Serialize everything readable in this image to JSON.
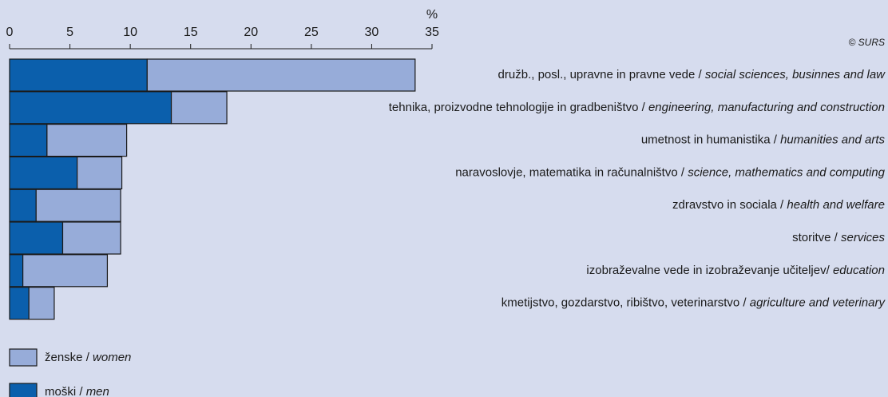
{
  "chart_data": {
    "type": "stacked-barh",
    "unit_label": "%",
    "source": "© SURS",
    "categories": [
      "družb., posl., upravne in pravne vede / social sciences, businnes and law",
      "tehnika, proizvodne tehnologije in gradbeništvo / engineering, manufacturing and construction",
      "umetnost in humanistika / humanities and arts",
      "naravoslovje, matematika in računalništvo / science, mathematics and computing",
      "zdravstvo in sociala / health and welfare",
      "storitve / services",
      "izobraževalne vede in izobraževanje učiteljev/ education",
      "kmetijstvo, gozdarstvo, ribištvo, veterinarstvo / agriculture and veterinary"
    ],
    "series": [
      {
        "name": "ženske / women",
        "color": "#97acd9",
        "values": [
          22.2,
          4.6,
          6.6,
          3.7,
          7.0,
          4.8,
          7.0,
          2.1
        ]
      },
      {
        "name": "moški / men",
        "color": "#0b5fac",
        "values": [
          11.4,
          13.4,
          3.1,
          5.6,
          2.2,
          4.4,
          1.1,
          1.6
        ]
      }
    ],
    "xlim": [
      0,
      35
    ],
    "xticks": [
      0,
      5,
      10,
      15,
      20,
      25,
      30,
      35
    ],
    "legend": "bottom-left"
  }
}
